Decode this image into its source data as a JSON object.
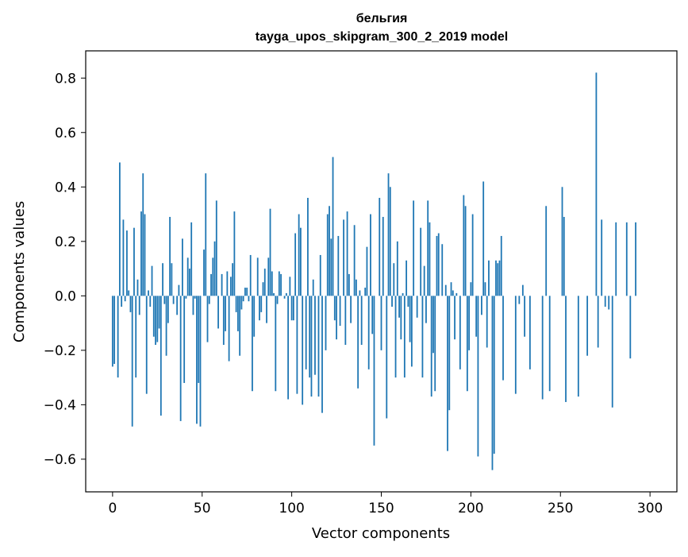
{
  "chart_data": {
    "type": "bar",
    "title_line1": "бельгия",
    "title_line2": "tayga_upos_skipgram_300_2_2019 model",
    "xlabel": "Vector components",
    "ylabel": "Components values",
    "xlim": [
      -15,
      315
    ],
    "ylim": [
      -0.72,
      0.9
    ],
    "xticks": [
      0,
      50,
      100,
      150,
      200,
      250,
      300
    ],
    "xtick_labels": [
      "0",
      "50",
      "100",
      "150",
      "200",
      "250",
      "300"
    ],
    "yticks": [
      -0.6,
      -0.4,
      -0.2,
      0.0,
      0.2,
      0.4,
      0.6,
      0.8
    ],
    "ytick_labels": [
      "−0.6",
      "−0.4",
      "−0.2",
      "0.0",
      "0.2",
      "0.4",
      "0.6",
      "0.8"
    ],
    "bar_color": "#1f77b4",
    "grid": false,
    "values": [
      -0.26,
      -0.25,
      0.0,
      -0.3,
      0.49,
      -0.04,
      0.28,
      -0.02,
      0.24,
      0.02,
      -0.06,
      -0.48,
      0.25,
      -0.3,
      0.06,
      -0.07,
      0.31,
      0.45,
      0.3,
      -0.36,
      0.02,
      -0.04,
      0.11,
      -0.15,
      -0.18,
      -0.17,
      -0.12,
      -0.44,
      0.12,
      -0.03,
      -0.22,
      -0.1,
      0.29,
      0.12,
      -0.03,
      0.0,
      -0.07,
      0.04,
      -0.46,
      0.21,
      -0.32,
      -0.01,
      0.14,
      0.1,
      0.27,
      -0.07,
      -0.01,
      -0.47,
      -0.32,
      -0.48,
      0.0,
      0.17,
      0.45,
      -0.17,
      -0.03,
      0.08,
      0.14,
      0.2,
      0.35,
      -0.12,
      0.0,
      0.08,
      -0.18,
      -0.13,
      0.09,
      -0.24,
      0.07,
      0.12,
      0.31,
      -0.06,
      -0.13,
      -0.22,
      -0.05,
      -0.02,
      0.03,
      0.03,
      -0.02,
      0.15,
      -0.35,
      -0.15,
      0.0,
      0.14,
      -0.09,
      -0.06,
      0.05,
      0.1,
      -0.1,
      0.14,
      0.32,
      0.09,
      0.01,
      -0.35,
      -0.03,
      0.09,
      0.08,
      0.0,
      -0.01,
      0.01,
      -0.38,
      0.07,
      -0.09,
      -0.09,
      0.23,
      -0.36,
      0.3,
      0.25,
      -0.4,
      0.0,
      -0.27,
      0.36,
      -0.3,
      -0.37,
      0.06,
      -0.29,
      0.0,
      -0.37,
      0.15,
      -0.43,
      0.0,
      -0.2,
      0.3,
      0.33,
      0.21,
      0.51,
      -0.09,
      -0.16,
      0.22,
      -0.11,
      0.0,
      0.28,
      -0.18,
      0.31,
      0.08,
      -0.1,
      0.0,
      0.26,
      0.06,
      -0.34,
      0.02,
      -0.18,
      0.0,
      0.03,
      0.18,
      -0.27,
      0.3,
      -0.14,
      -0.55,
      0.0,
      0.0,
      0.36,
      -0.2,
      0.29,
      0.0,
      -0.45,
      0.45,
      0.4,
      -0.04,
      0.12,
      -0.3,
      0.2,
      -0.08,
      -0.16,
      0.01,
      -0.3,
      0.13,
      -0.04,
      -0.17,
      -0.26,
      0.35,
      0.0,
      -0.08,
      0.0,
      0.25,
      -0.3,
      0.11,
      -0.1,
      0.35,
      0.27,
      -0.37,
      -0.21,
      -0.35,
      0.22,
      0.23,
      0.0,
      0.19,
      0.0,
      0.04,
      -0.57,
      -0.42,
      0.05,
      0.02,
      -0.16,
      0.01,
      0.0,
      -0.27,
      0.0,
      0.37,
      0.33,
      -0.35,
      -0.2,
      0.05,
      0.3,
      0.0,
      -0.15,
      -0.59,
      0.0,
      -0.07,
      0.42,
      0.05,
      -0.19,
      0.13,
      0.0,
      -0.64,
      -0.58,
      0.13,
      0.12,
      0.13,
      0.22,
      -0.31,
      0.0,
      0.0,
      0.0,
      0.0,
      0.0,
      0.0,
      -0.36,
      0.0,
      -0.03,
      0.0,
      0.04,
      -0.15,
      0.0,
      0.0,
      -0.27,
      0.0,
      0.0,
      0.0,
      0.0,
      0.0,
      0.0,
      -0.38,
      0.0,
      0.33,
      0.0,
      -0.35,
      0.0,
      0.0,
      0.0,
      0.0,
      0.0,
      0.0,
      0.4,
      0.29,
      -0.39,
      0.0,
      0.0,
      0.0,
      0.0,
      0.0,
      0.0,
      -0.37,
      0.0,
      0.0,
      0.0,
      0.0,
      -0.22,
      0.0,
      0.0,
      0.0,
      0.0,
      0.82,
      -0.19,
      0.0,
      0.28,
      0.0,
      -0.04,
      0.0,
      -0.05,
      0.0,
      -0.41,
      0.0,
      0.27,
      0.0,
      0.0,
      0.0,
      0.0,
      0.0,
      0.27,
      0.0,
      -0.23,
      0.0,
      0.0,
      0.27,
      0.0,
      0.0
    ]
  }
}
